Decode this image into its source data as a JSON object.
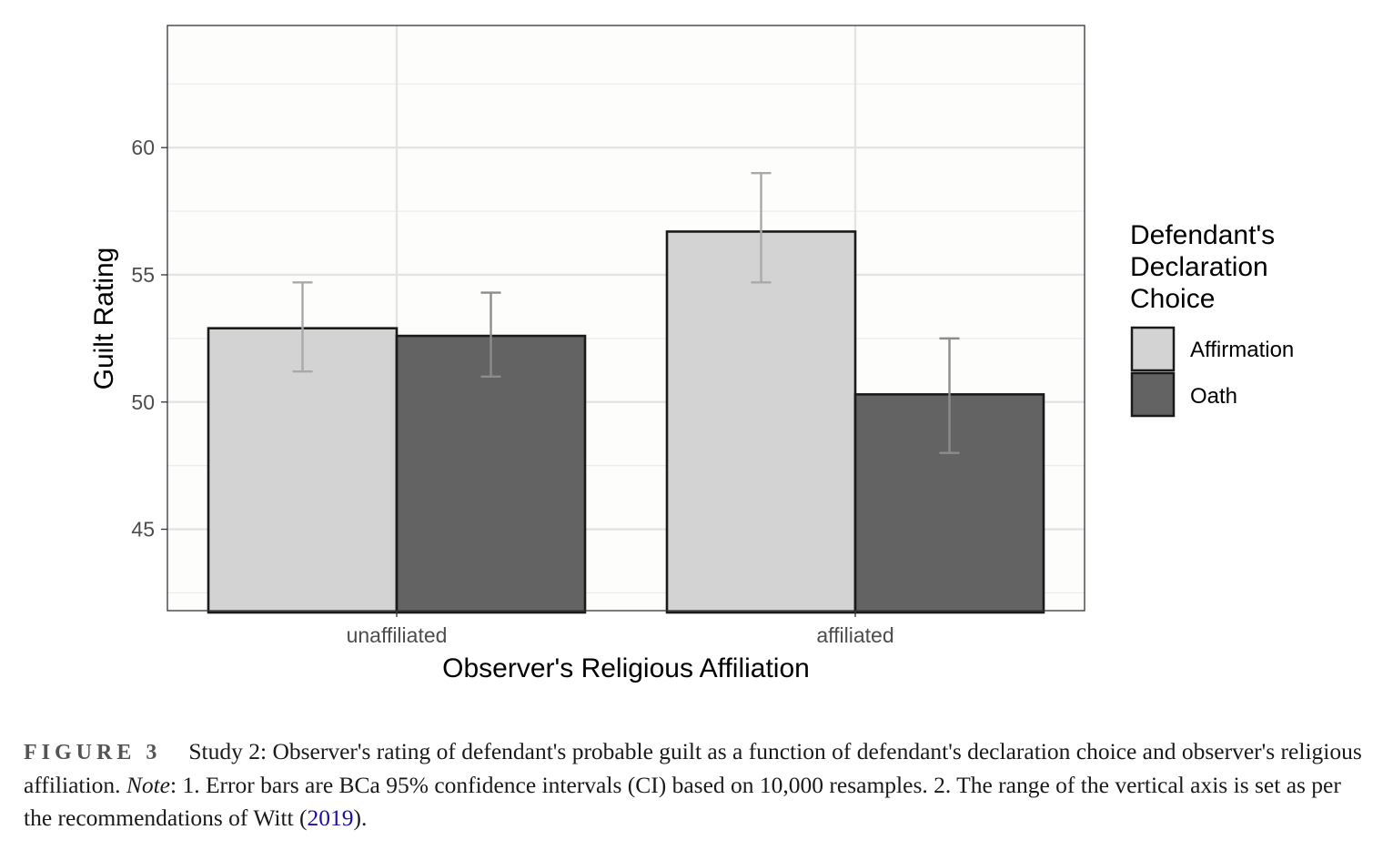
{
  "chart_data": {
    "type": "bar",
    "xlabel": "Observer's Religious Affiliation",
    "ylabel": "Guilt Rating",
    "ylim": [
      41.8,
      64.8
    ],
    "yticks": [
      45,
      50,
      55,
      60
    ],
    "grid": true,
    "legend_position": "right",
    "legend_title": [
      "Defendant's",
      "Declaration",
      "Choice"
    ],
    "categories": [
      "unaffiliated",
      "affiliated"
    ],
    "series": [
      {
        "name": "Affirmation",
        "color": "#d3d3d3",
        "values": [
          52.9,
          56.7
        ],
        "ci_low": [
          51.2,
          54.7
        ],
        "ci_high": [
          54.7,
          59.0
        ]
      },
      {
        "name": "Oath",
        "color": "#636363",
        "values": [
          52.6,
          50.3
        ],
        "ci_low": [
          51.0,
          48.0
        ],
        "ci_high": [
          54.3,
          52.5
        ]
      }
    ]
  },
  "caption": {
    "label": "FIGURE 3",
    "text_1": "Study 2: Observer's rating of defendant's probable guilt as a function of defendant's declaration choice and observer's religious affiliation. ",
    "note_label": "Note",
    "text_2": ": 1. Error bars are BCa 95% confidence intervals (CI) based on 10,000 resamples. 2. The range of the vertical axis is set as per the recommendations of Witt (",
    "citation": "2019",
    "text_3": ")."
  }
}
